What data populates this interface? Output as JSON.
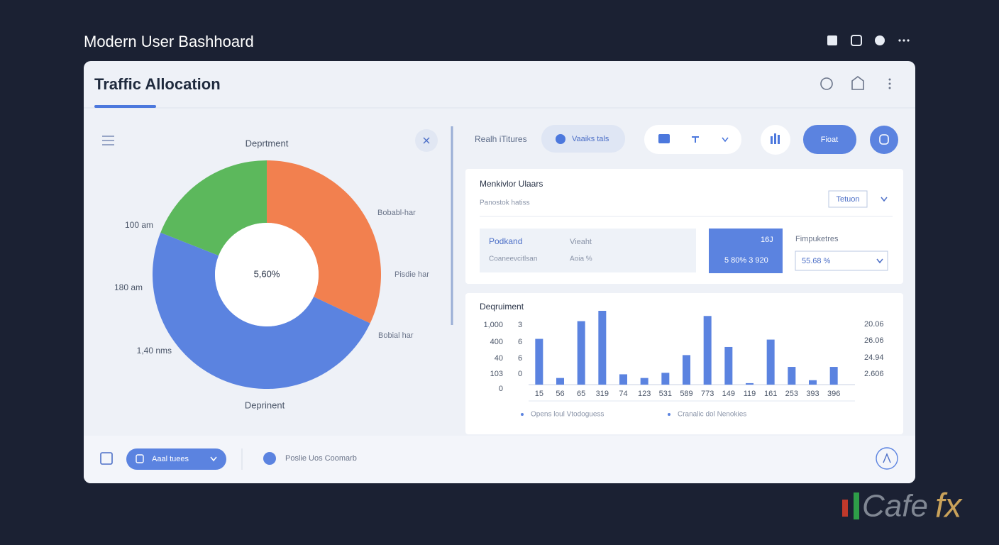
{
  "header": {
    "title": "Modern User Bashhoard"
  },
  "card": {
    "title": "Traffic Allocation"
  },
  "toolbar": {
    "label": "Realh iTitures",
    "filter": "Vaaiks tals",
    "button": "Fioat"
  },
  "summary": {
    "title": "Menkivlor Ulaars",
    "subtitle": "Panostok hatiss",
    "select": "Tetuon",
    "grid": [
      [
        "Podkand",
        "Vieaht"
      ],
      [
        "Coaneevcitlsan",
        "Aoia %"
      ]
    ],
    "highlight": {
      "top": "16J",
      "bottom": "5 80% 3 920"
    },
    "field_label": "Fimpuketres",
    "field_value": "55.68 %"
  },
  "footer": {
    "button": "Aaal tuees",
    "text": "Poslie Uos Coomarb"
  },
  "watermark": {
    "brand": "Cafe",
    "suffix": "fx"
  },
  "chart_data": [
    {
      "type": "pie",
      "title": "Deprtment",
      "caption": "Deprinent",
      "center_label": "5,60%",
      "values": [
        32,
        49,
        19
      ],
      "colors": [
        "#f2804f",
        "#5b83e0",
        "#5cb85c"
      ],
      "left_labels": [
        "100 am",
        "180 am",
        "1,40 nms"
      ],
      "right_labels": [
        "Bobabl-har",
        "Pisdie har",
        "Bobial har"
      ]
    },
    {
      "type": "bar",
      "title": "Deqruiment",
      "categories": [
        "15",
        "56",
        "65",
        "319",
        "74",
        "123",
        "531",
        "589",
        "773",
        "149",
        "119",
        "161",
        "253",
        "393",
        "396"
      ],
      "values": [
        62,
        9,
        86,
        100,
        14,
        9,
        16,
        40,
        93,
        51,
        2,
        61,
        24,
        6,
        24
      ],
      "color": "#5b83e0",
      "ylim": [
        0,
        100
      ],
      "left_labels": [
        "1,000",
        "400",
        "40",
        "103",
        "0"
      ],
      "left_labels_2": [
        "3",
        "6",
        "6",
        "0"
      ],
      "right_labels": [
        "20.06",
        "26.06",
        "24.94",
        "2.606"
      ],
      "legend": [
        "Opens loul Vtodoguess",
        "Cranalic dol Nenokies"
      ]
    }
  ]
}
